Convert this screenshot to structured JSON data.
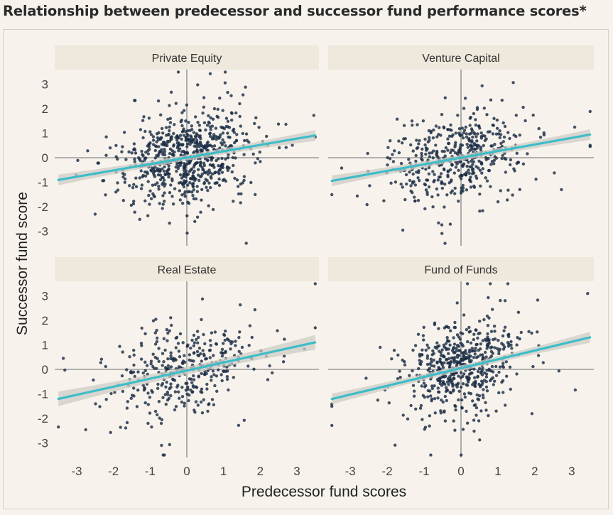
{
  "chart_data": {
    "type": "scatter",
    "title": "Relationship between predecessor and successor fund performance scores*",
    "xlabel": "Predecessor fund scores",
    "ylabel": "Successor fund score",
    "xlim": [
      -3.6,
      3.6
    ],
    "ylim": [
      -3.6,
      3.6
    ],
    "x_ticks": [
      -3,
      -2,
      -1,
      0,
      1,
      2,
      3
    ],
    "y_ticks": [
      3,
      2,
      1,
      0,
      -1,
      -2,
      -3
    ],
    "colors": {
      "point": "#1b2d45",
      "trend_line": "#3dbdc8",
      "confidence_band": "#cfccc5",
      "strip": "#efe8dc",
      "panel_background": "#f7f3ec",
      "zero_line": "#9a9a9a"
    },
    "panels": [
      {
        "name": "Private Equity",
        "trend": {
          "intercept": 0.0,
          "slope": 0.26
        },
        "band_half_width": [
          0.22,
          0.05,
          0.22
        ],
        "approx_points": 720,
        "spread": {
          "sx": 0.9,
          "rho": 0.3
        }
      },
      {
        "name": "Venture Capital",
        "trend": {
          "intercept": 0.0,
          "slope": 0.27
        },
        "band_half_width": [
          0.22,
          0.06,
          0.22
        ],
        "approx_points": 480,
        "spread": {
          "sx": 0.85,
          "rho": 0.3
        }
      },
      {
        "name": "Real Estate",
        "trend": {
          "intercept": -0.05,
          "slope": 0.33
        },
        "band_half_width": [
          0.3,
          0.07,
          0.3
        ],
        "approx_points": 380,
        "spread": {
          "sx": 0.95,
          "rho": 0.35
        }
      },
      {
        "name": "Fund of Funds",
        "trend": {
          "intercept": 0.05,
          "slope": 0.36
        },
        "band_half_width": [
          0.22,
          0.05,
          0.22
        ],
        "approx_points": 560,
        "spread": {
          "sx": 0.75,
          "rho": 0.45
        }
      }
    ]
  }
}
